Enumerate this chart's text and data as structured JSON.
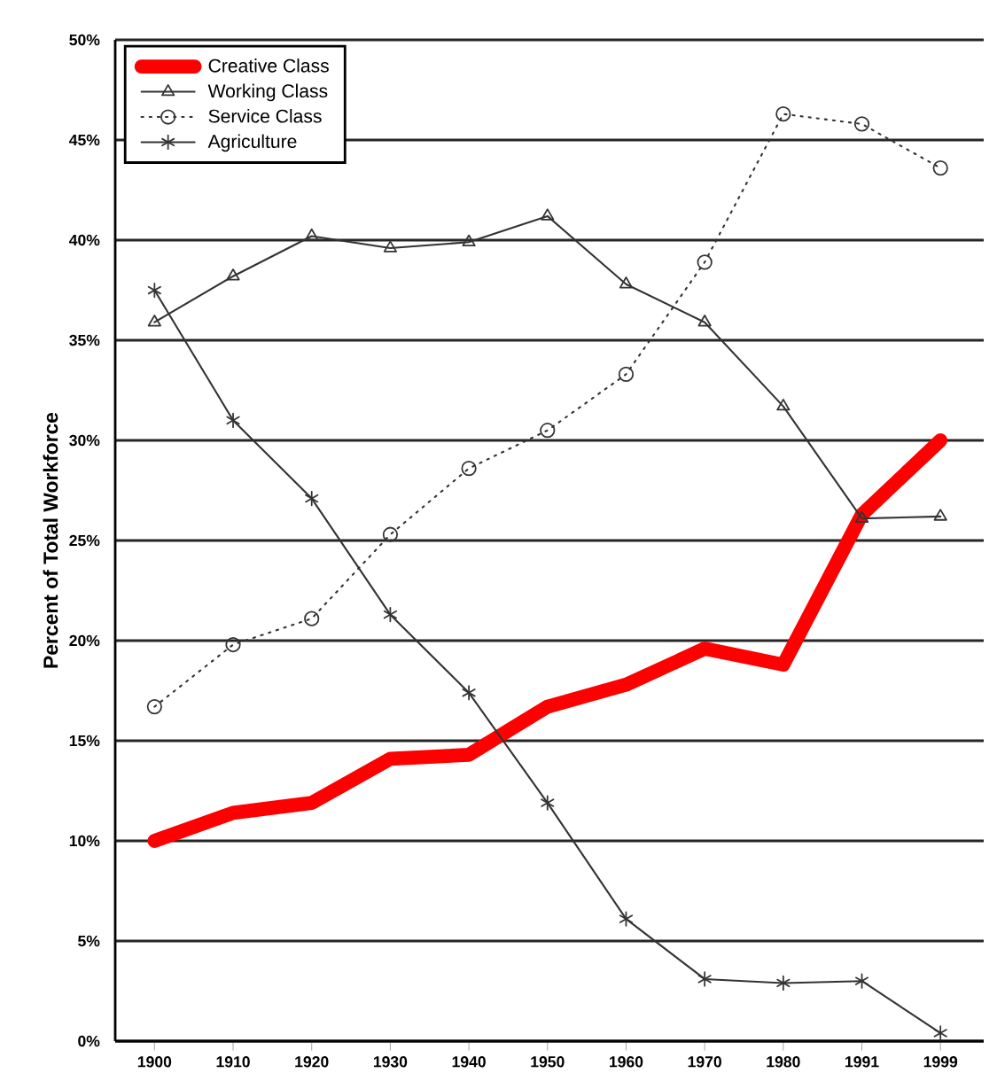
{
  "chart_data": {
    "type": "line",
    "ylabel": "Percent of Total Workforce",
    "categories": [
      "1900",
      "1910",
      "1920",
      "1930",
      "1940",
      "1950",
      "1960",
      "1970",
      "1980",
      "1991",
      "1999"
    ],
    "series": [
      {
        "name": "Creative Class",
        "color": "#ff0000",
        "marker": "none",
        "line_style": "solid",
        "values": [
          10.0,
          11.4,
          11.9,
          14.1,
          14.3,
          16.7,
          17.8,
          19.6,
          18.8,
          26.3,
          30.0
        ]
      },
      {
        "name": "Working Class",
        "color": "#333333",
        "marker": "triangle",
        "line_style": "solid",
        "values": [
          35.9,
          38.2,
          40.2,
          39.6,
          39.9,
          41.2,
          37.8,
          35.9,
          31.7,
          26.1,
          26.2
        ]
      },
      {
        "name": "Service Class",
        "color": "#333333",
        "marker": "circle",
        "line_style": "dotted",
        "values": [
          16.7,
          19.8,
          21.1,
          25.3,
          28.6,
          30.5,
          33.3,
          38.9,
          46.3,
          45.8,
          43.6
        ]
      },
      {
        "name": "Agriculture",
        "color": "#333333",
        "marker": "cross",
        "line_style": "solid",
        "values": [
          37.5,
          31.0,
          27.1,
          21.3,
          17.4,
          11.9,
          6.1,
          3.1,
          2.9,
          3.0,
          0.4
        ]
      }
    ],
    "ylim": [
      0,
      50
    ],
    "yticks": [
      {
        "value": 0,
        "label": "0%"
      },
      {
        "value": 5,
        "label": "5%"
      },
      {
        "value": 10,
        "label": "10%"
      },
      {
        "value": 15,
        "label": "15%"
      },
      {
        "value": 20,
        "label": "20%"
      },
      {
        "value": 25,
        "label": "25%"
      },
      {
        "value": 30,
        "label": "30%"
      },
      {
        "value": 35,
        "label": "35%"
      },
      {
        "value": 40,
        "label": "40%"
      },
      {
        "value": 45,
        "label": "45%"
      },
      {
        "value": 50,
        "label": "50%"
      }
    ],
    "grid": "y",
    "legend": "top left"
  }
}
